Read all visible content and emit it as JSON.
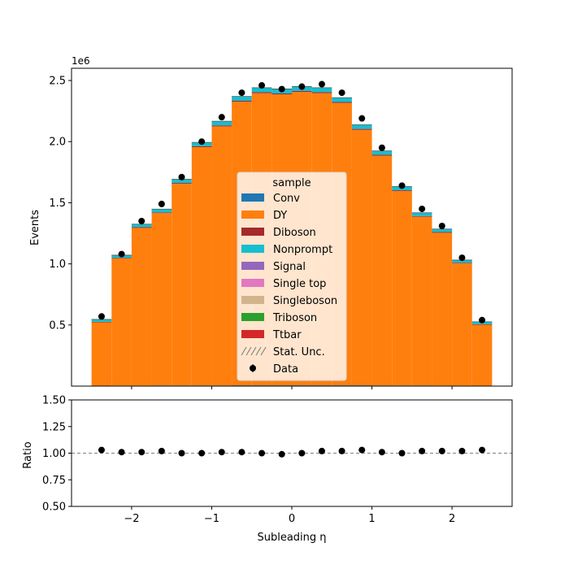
{
  "chart_data": [
    {
      "type": "bar",
      "stacked": true,
      "ylabel": "Events",
      "y_multiplier": "1e6",
      "ylim": [
        0,
        2.6
      ],
      "y_ticks": [
        "0.5",
        "1.0",
        "1.5",
        "2.0",
        "2.5"
      ],
      "xlim": [
        -2.75,
        2.75
      ],
      "bin_edges": [
        -2.5,
        -2.25,
        -2.0,
        -1.75,
        -1.5,
        -1.25,
        -1.0,
        -0.75,
        -0.5,
        -0.25,
        0.0,
        0.25,
        0.5,
        0.75,
        1.0,
        1.25,
        1.5,
        1.75,
        2.0,
        2.25,
        2.5
      ],
      "series": [
        {
          "name": "Conv",
          "color": "#1f77b4",
          "values": [
            0.003,
            0.004,
            0.004,
            0.005,
            0.005,
            0.005,
            0.005,
            0.006,
            0.006,
            0.006,
            0.006,
            0.006,
            0.006,
            0.006,
            0.005,
            0.005,
            0.005,
            0.004,
            0.004,
            0.003
          ]
        },
        {
          "name": "DY",
          "color": "#ff7f0e",
          "values": [
            0.52,
            1.04,
            1.29,
            1.41,
            1.65,
            1.95,
            2.12,
            2.32,
            2.39,
            2.38,
            2.4,
            2.39,
            2.31,
            2.09,
            1.88,
            1.59,
            1.38,
            1.25,
            1.0,
            0.5
          ]
        },
        {
          "name": "Diboson",
          "color": "#a52a2a",
          "values": [
            0.003,
            0.005,
            0.006,
            0.006,
            0.007,
            0.007,
            0.008,
            0.008,
            0.008,
            0.008,
            0.008,
            0.008,
            0.008,
            0.008,
            0.007,
            0.007,
            0.006,
            0.006,
            0.005,
            0.003
          ]
        },
        {
          "name": "Nonprompt",
          "color": "#17becf",
          "values": [
            0.02,
            0.022,
            0.025,
            0.027,
            0.03,
            0.032,
            0.034,
            0.036,
            0.037,
            0.037,
            0.037,
            0.037,
            0.036,
            0.034,
            0.032,
            0.03,
            0.027,
            0.025,
            0.022,
            0.02
          ]
        },
        {
          "name": "Signal",
          "color": "#9467bd",
          "values": [
            0,
            0,
            0,
            0,
            0,
            0,
            0,
            0,
            0,
            0,
            0,
            0,
            0,
            0,
            0,
            0,
            0,
            0,
            0,
            0
          ]
        },
        {
          "name": "Single top",
          "color": "#e377c2",
          "values": [
            0,
            0,
            0,
            0,
            0,
            0,
            0,
            0,
            0,
            0,
            0,
            0,
            0,
            0,
            0,
            0,
            0,
            0,
            0,
            0
          ]
        },
        {
          "name": "Singleboson",
          "color": "#d2b48c",
          "values": [
            0,
            0,
            0,
            0,
            0,
            0,
            0,
            0,
            0,
            0,
            0,
            0,
            0,
            0,
            0,
            0,
            0,
            0,
            0,
            0
          ]
        },
        {
          "name": "Triboson",
          "color": "#2ca02c",
          "values": [
            0,
            0,
            0,
            0,
            0,
            0,
            0,
            0,
            0,
            0,
            0,
            0,
            0,
            0,
            0,
            0,
            0,
            0,
            0,
            0
          ]
        },
        {
          "name": "Ttbar",
          "color": "#d62728",
          "values": [
            0,
            0,
            0,
            0,
            0,
            0,
            0,
            0,
            0,
            0,
            0,
            0,
            0,
            0,
            0,
            0,
            0,
            0,
            0,
            0
          ]
        }
      ],
      "data": {
        "name": "Data",
        "x": [
          -2.375,
          -2.125,
          -1.875,
          -1.625,
          -1.375,
          -1.125,
          -0.875,
          -0.625,
          -0.375,
          -0.125,
          0.125,
          0.375,
          0.625,
          0.875,
          1.125,
          1.375,
          1.625,
          1.875,
          2.125,
          2.375
        ],
        "values": [
          0.57,
          1.08,
          1.35,
          1.49,
          1.71,
          2.0,
          2.2,
          2.4,
          2.46,
          2.43,
          2.45,
          2.47,
          2.4,
          2.19,
          1.95,
          1.64,
          1.45,
          1.31,
          1.05,
          0.54
        ]
      },
      "legend": {
        "title": "sample",
        "placement": "center",
        "extra_entries": [
          "Stat. Unc.",
          "Data"
        ]
      }
    },
    {
      "type": "scatter",
      "ylabel": "Ratio",
      "xlabel": "Subleading η",
      "ylim": [
        0.5,
        1.5
      ],
      "y_ticks": [
        "0.50",
        "0.75",
        "1.00",
        "1.25",
        "1.50"
      ],
      "x_ticks": [
        "−2",
        "−1",
        "0",
        "1",
        "2"
      ],
      "x_tick_values": [
        -2,
        -1,
        0,
        1,
        2
      ],
      "xlim": [
        -2.75,
        2.75
      ],
      "reference_line": 1.0,
      "x": [
        -2.375,
        -2.125,
        -1.875,
        -1.625,
        -1.375,
        -1.125,
        -0.875,
        -0.625,
        -0.375,
        -0.125,
        0.125,
        0.375,
        0.625,
        0.875,
        1.125,
        1.375,
        1.625,
        1.875,
        2.125,
        2.375
      ],
      "values": [
        1.03,
        1.01,
        1.01,
        1.02,
        1.0,
        1.0,
        1.01,
        1.01,
        1.0,
        0.99,
        1.0,
        1.02,
        1.02,
        1.03,
        1.01,
        1.0,
        1.02,
        1.02,
        1.02,
        1.03
      ]
    }
  ]
}
